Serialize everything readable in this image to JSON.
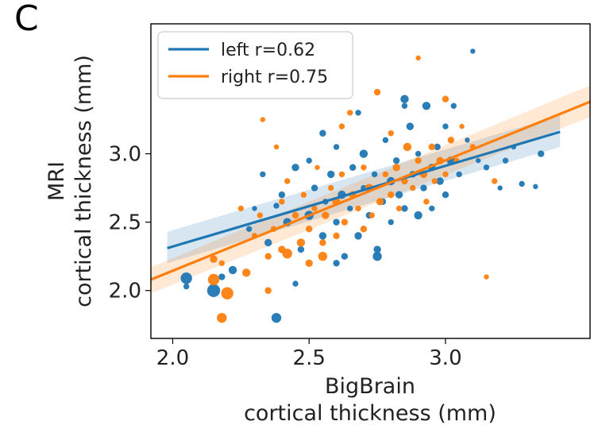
{
  "panel_label": "C",
  "chart_data": {
    "type": "scatter",
    "title": "",
    "xlabel_lines": [
      "BigBrain",
      "cortical thickness (mm)"
    ],
    "ylabel_lines": [
      "MRI",
      "cortical thickness (mm)"
    ],
    "xlim": [
      1.92,
      3.53
    ],
    "ylim": [
      1.65,
      3.95
    ],
    "xticks": [
      "2.0",
      "2.5",
      "3.0"
    ],
    "xtick_values": [
      2.0,
      2.5,
      3.0
    ],
    "yticks": [
      "2.0",
      "2.5",
      "3.0"
    ],
    "ytick_values": [
      2.0,
      2.5,
      3.0
    ],
    "grid": false,
    "legend_position": "top-left",
    "colors": {
      "left": "#1f77b4",
      "right": "#ff7f0e"
    },
    "series": [
      {
        "name": "left r=0.62",
        "color": "#1f77b4",
        "regression": {
          "x": [
            1.98,
            3.42
          ],
          "y": [
            2.31,
            3.16
          ],
          "ci_low": [
            2.2,
            3.05
          ],
          "ci_high": [
            2.43,
            3.28
          ]
        },
        "points": [
          [
            2.05,
            2.09,
            12
          ],
          [
            2.05,
            2.03,
            5
          ],
          [
            2.15,
            2.0,
            14
          ],
          [
            2.18,
            2.1,
            6
          ],
          [
            2.22,
            2.15,
            8
          ],
          [
            2.38,
            1.8,
            10
          ],
          [
            2.28,
            2.45,
            5
          ],
          [
            2.3,
            2.6,
            4
          ],
          [
            2.33,
            2.85,
            5
          ],
          [
            2.35,
            2.35,
            7
          ],
          [
            2.38,
            2.62,
            5
          ],
          [
            2.4,
            2.7,
            6
          ],
          [
            2.42,
            2.5,
            8
          ],
          [
            2.45,
            2.9,
            7
          ],
          [
            2.47,
            2.3,
            6
          ],
          [
            2.5,
            2.55,
            9
          ],
          [
            2.5,
            2.95,
            5
          ],
          [
            2.52,
            2.75,
            6
          ],
          [
            2.55,
            2.4,
            7
          ],
          [
            2.56,
            2.65,
            5
          ],
          [
            2.58,
            2.85,
            7
          ],
          [
            2.6,
            2.5,
            6
          ],
          [
            2.6,
            3.05,
            5
          ],
          [
            2.62,
            2.7,
            8
          ],
          [
            2.63,
            2.25,
            6
          ],
          [
            2.65,
            2.6,
            5
          ],
          [
            2.66,
            2.9,
            6
          ],
          [
            2.68,
            2.4,
            7
          ],
          [
            2.7,
            2.75,
            5
          ],
          [
            2.7,
            3.0,
            8
          ],
          [
            2.72,
            2.55,
            6
          ],
          [
            2.74,
            2.85,
            5
          ],
          [
            2.75,
            2.3,
            7
          ],
          [
            2.77,
            2.65,
            6
          ],
          [
            2.78,
            3.1,
            5
          ],
          [
            2.8,
            2.8,
            8
          ],
          [
            2.8,
            2.5,
            5
          ],
          [
            2.82,
            2.95,
            6
          ],
          [
            2.83,
            2.7,
            7
          ],
          [
            2.85,
            3.35,
            5
          ],
          [
            2.85,
            2.6,
            6
          ],
          [
            2.87,
            3.2,
            7
          ],
          [
            2.88,
            2.85,
            6
          ],
          [
            2.9,
            2.55,
            8
          ],
          [
            2.9,
            3.0,
            5
          ],
          [
            2.92,
            2.75,
            6
          ],
          [
            2.93,
            3.35,
            8
          ],
          [
            2.95,
            2.9,
            7
          ],
          [
            2.95,
            2.6,
            5
          ],
          [
            2.97,
            3.05,
            6
          ],
          [
            2.98,
            2.8,
            7
          ],
          [
            3.0,
            3.2,
            5
          ],
          [
            3.0,
            2.7,
            6
          ],
          [
            3.02,
            2.95,
            8
          ],
          [
            3.03,
            3.35,
            5
          ],
          [
            3.05,
            2.85,
            5
          ],
          [
            3.08,
            3.1,
            4
          ],
          [
            3.1,
            3.75,
            4
          ],
          [
            3.12,
            2.95,
            4
          ],
          [
            3.15,
            2.9,
            5
          ],
          [
            3.2,
            2.75,
            4
          ],
          [
            3.22,
            2.95,
            5
          ],
          [
            3.25,
            3.05,
            4
          ],
          [
            3.28,
            2.78,
            5
          ],
          [
            3.33,
            2.76,
            4
          ],
          [
            3.35,
            3.0,
            6
          ],
          [
            2.85,
            3.4,
            8
          ],
          [
            2.75,
            2.25,
            9
          ],
          [
            2.55,
            3.15,
            6
          ],
          [
            2.6,
            2.2,
            6
          ],
          [
            2.45,
            2.05,
            5
          ],
          [
            2.68,
            3.3,
            5
          ]
        ]
      },
      {
        "name": "right r=0.75",
        "color": "#ff7f0e",
        "regression": {
          "x": [
            1.92,
            3.53
          ],
          "y": [
            2.08,
            3.38
          ],
          "ci_low": [
            1.98,
            3.27
          ],
          "ci_high": [
            2.17,
            3.5
          ]
        },
        "points": [
          [
            2.15,
            2.08,
            12
          ],
          [
            2.18,
            1.8,
            10
          ],
          [
            2.2,
            1.98,
            13
          ],
          [
            2.15,
            2.23,
            7
          ],
          [
            2.18,
            2.2,
            5
          ],
          [
            2.27,
            2.13,
            8
          ],
          [
            2.3,
            2.4,
            5
          ],
          [
            2.32,
            2.55,
            5
          ],
          [
            2.35,
            2.25,
            6
          ],
          [
            2.37,
            2.45,
            5
          ],
          [
            2.4,
            2.3,
            7
          ],
          [
            2.4,
            2.65,
            5
          ],
          [
            2.42,
            2.8,
            5
          ],
          [
            2.45,
            2.55,
            6
          ],
          [
            2.47,
            2.35,
            8
          ],
          [
            2.48,
            2.7,
            5
          ],
          [
            2.5,
            2.2,
            7
          ],
          [
            2.5,
            2.45,
            6
          ],
          [
            2.52,
            2.6,
            5
          ],
          [
            2.53,
            2.9,
            4
          ],
          [
            2.55,
            2.35,
            6
          ],
          [
            2.56,
            2.55,
            7
          ],
          [
            2.58,
            2.75,
            5
          ],
          [
            2.6,
            2.4,
            6
          ],
          [
            2.6,
            2.65,
            8
          ],
          [
            2.62,
            2.85,
            5
          ],
          [
            2.63,
            2.5,
            6
          ],
          [
            2.65,
            3.3,
            5
          ],
          [
            2.66,
            2.7,
            7
          ],
          [
            2.68,
            2.6,
            5
          ],
          [
            2.7,
            2.45,
            6
          ],
          [
            2.7,
            2.9,
            5
          ],
          [
            2.72,
            2.75,
            8
          ],
          [
            2.73,
            2.55,
            5
          ],
          [
            2.75,
            3.45,
            6
          ],
          [
            2.76,
            2.65,
            7
          ],
          [
            2.78,
            2.85,
            5
          ],
          [
            2.8,
            2.7,
            6
          ],
          [
            2.8,
            3.15,
            5
          ],
          [
            2.82,
            2.9,
            7
          ],
          [
            2.83,
            2.6,
            5
          ],
          [
            2.85,
            2.8,
            6
          ],
          [
            2.86,
            3.05,
            8
          ],
          [
            2.88,
            2.75,
            5
          ],
          [
            2.9,
            2.95,
            6
          ],
          [
            2.9,
            3.7,
            4
          ],
          [
            2.92,
            2.85,
            7
          ],
          [
            2.93,
            2.65,
            5
          ],
          [
            2.95,
            3.05,
            6
          ],
          [
            2.96,
            2.8,
            5
          ],
          [
            2.98,
            2.95,
            7
          ],
          [
            3.0,
            3.4,
            6
          ],
          [
            3.0,
            2.85,
            5
          ],
          [
            3.02,
            3.1,
            6
          ],
          [
            3.04,
            2.95,
            5
          ],
          [
            3.06,
            3.2,
            4
          ],
          [
            3.1,
            3.05,
            5
          ],
          [
            3.15,
            2.1,
            4
          ],
          [
            3.18,
            2.8,
            5
          ],
          [
            2.55,
            2.25,
            9
          ],
          [
            2.42,
            2.27,
            10
          ],
          [
            2.35,
            2.0,
            6
          ],
          [
            2.25,
            2.6,
            5
          ],
          [
            2.62,
            3.2,
            5
          ],
          [
            2.38,
            3.05,
            4
          ],
          [
            2.33,
            3.25,
            4
          ]
        ]
      }
    ]
  }
}
